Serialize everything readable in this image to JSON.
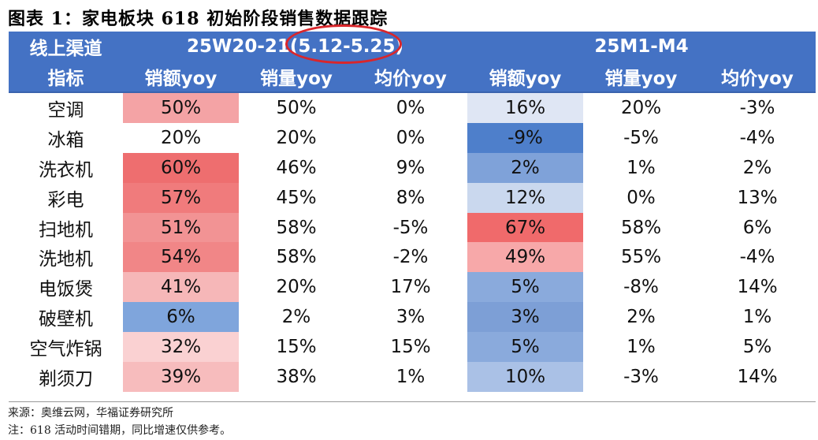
{
  "title": "图表 1：家电板块 618 初始阶段销售数据跟踪",
  "header": {
    "channel_label": "线上渠道",
    "period1": "25W20-21(5.12-5.25)",
    "period2": "25M1-M4",
    "indicator_label": "指标",
    "columns": [
      "销额yoy",
      "销量yoy",
      "均价yoy",
      "销额yoy",
      "销量yoy",
      "均价yoy"
    ]
  },
  "rows": [
    {
      "category": "空调",
      "values": [
        "50%",
        "50%",
        "0%",
        "16%",
        "20%",
        "-3%"
      ]
    },
    {
      "category": "冰箱",
      "values": [
        "20%",
        "20%",
        "0%",
        "-9%",
        "-5%",
        "-4%"
      ]
    },
    {
      "category": "洗衣机",
      "values": [
        "60%",
        "46%",
        "9%",
        "2%",
        "1%",
        "2%"
      ]
    },
    {
      "category": "彩电",
      "values": [
        "57%",
        "45%",
        "8%",
        "12%",
        "0%",
        "13%"
      ]
    },
    {
      "category": "扫地机",
      "values": [
        "51%",
        "58%",
        "-5%",
        "67%",
        "58%",
        "6%"
      ]
    },
    {
      "category": "洗地机",
      "values": [
        "54%",
        "58%",
        "-2%",
        "49%",
        "55%",
        "-4%"
      ]
    },
    {
      "category": "电饭煲",
      "values": [
        "41%",
        "20%",
        "17%",
        "5%",
        "-8%",
        "14%"
      ]
    },
    {
      "category": "破壁机",
      "values": [
        "6%",
        "2%",
        "3%",
        "3%",
        "2%",
        "1%"
      ]
    },
    {
      "category": "空气炸锅",
      "values": [
        "32%",
        "15%",
        "15%",
        "5%",
        "1%",
        "5%"
      ]
    },
    {
      "category": "剃须刀",
      "values": [
        "39%",
        "38%",
        "1%",
        "10%",
        "-3%",
        "14%"
      ]
    }
  ],
  "heat_colors": {
    "sales1": [
      "#f4a3a5",
      "#ffffff",
      "#ee6e6f",
      "#f07b7c",
      "#f29394",
      "#f18687",
      "#f6b7b8",
      "#7fa5dc",
      "#fad1d2",
      "#f7bcbd"
    ],
    "sales2": [
      "#dfe6f4",
      "#4e7fcb",
      "#7fa2d9",
      "#cad8ee",
      "#f06a6b",
      "#f7a8a9",
      "#8aaadc",
      "#7d9fd6",
      "#8aaadc",
      "#aac1e6"
    ]
  },
  "notes": [
    "来源：奥维云网，华福证券研究所",
    "注：618 活动时间错期，同比增速仅供参考。"
  ]
}
